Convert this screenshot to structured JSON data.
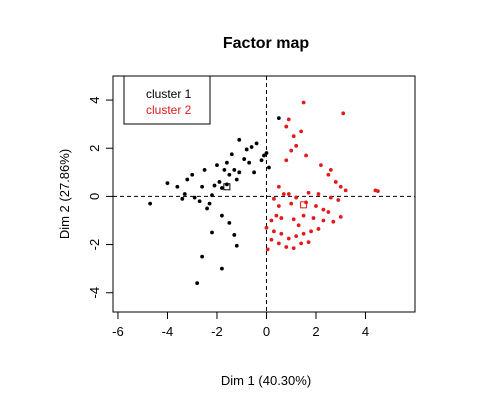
{
  "chart_data": {
    "type": "scatter",
    "title": "Factor map",
    "xlabel": "Dim 1 (40.30%)",
    "ylabel": "Dim 2 (27.86%)",
    "xlim": [
      -6.2,
      6
    ],
    "ylim": [
      -4.8,
      5
    ],
    "x_ticks": [
      -6,
      -4,
      -2,
      0,
      2,
      4
    ],
    "y_ticks": [
      -4,
      -2,
      0,
      2,
      4
    ],
    "reference_lines": {
      "x": 0,
      "y": 0,
      "style": "dashed"
    },
    "legend": {
      "position": "top-left",
      "entries": [
        "cluster 1",
        "cluster 2"
      ]
    },
    "series": [
      {
        "name": "cluster 1",
        "color": "#000000",
        "points": [
          [
            -4.7,
            -0.3
          ],
          [
            -4.0,
            0.55
          ],
          [
            -3.6,
            0.4
          ],
          [
            -3.4,
            -0.1
          ],
          [
            -3.3,
            0.1
          ],
          [
            -3.2,
            0.7
          ],
          [
            -3.0,
            0.9
          ],
          [
            -2.9,
            -0.05
          ],
          [
            -2.7,
            -0.2
          ],
          [
            -2.6,
            0.4
          ],
          [
            -2.5,
            1.1
          ],
          [
            -2.4,
            -0.5
          ],
          [
            -2.3,
            -0.3
          ],
          [
            -2.2,
            0.05
          ],
          [
            -2.1,
            0.45
          ],
          [
            -2.0,
            1.3
          ],
          [
            -1.9,
            0.6
          ],
          [
            -1.8,
            0.35
          ],
          [
            -1.7,
            1.1
          ],
          [
            -1.6,
            1.4
          ],
          [
            -1.5,
            0.9
          ],
          [
            -1.4,
            1.75
          ],
          [
            -1.3,
            1.1
          ],
          [
            -1.2,
            0.7
          ],
          [
            -1.1,
            1.0
          ],
          [
            -0.9,
            1.55
          ],
          [
            -0.8,
            1.95
          ],
          [
            -0.7,
            1.4
          ],
          [
            -0.6,
            2.05
          ],
          [
            -0.5,
            1.0
          ],
          [
            -0.4,
            2.2
          ],
          [
            -0.2,
            1.5
          ],
          [
            -0.1,
            1.7
          ],
          [
            -1.1,
            2.35
          ],
          [
            -2.2,
            -1.5
          ],
          [
            -1.8,
            -0.8
          ],
          [
            -1.5,
            -1.1
          ],
          [
            -1.3,
            -1.6
          ],
          [
            -1.2,
            -2.05
          ],
          [
            -1.8,
            -3.0
          ],
          [
            -2.6,
            -2.5
          ],
          [
            -2.8,
            -3.6
          ],
          [
            -1.6,
            0.5
          ],
          [
            0.5,
            3.25
          ],
          [
            0.1,
            1.2
          ],
          [
            0.0,
            1.8
          ]
        ]
      },
      {
        "name": "cluster 2",
        "color": "#e31a1c",
        "points": [
          [
            1.5,
            3.9
          ],
          [
            0.9,
            3.2
          ],
          [
            0.8,
            2.9
          ],
          [
            1.1,
            2.5
          ],
          [
            1.4,
            2.7
          ],
          [
            1.2,
            2.1
          ],
          [
            1.0,
            1.9
          ],
          [
            0.8,
            1.5
          ],
          [
            1.6,
            1.7
          ],
          [
            2.2,
            1.3
          ],
          [
            2.5,
            0.9
          ],
          [
            2.6,
            1.1
          ],
          [
            2.8,
            0.6
          ],
          [
            3.0,
            0.4
          ],
          [
            3.2,
            0.25
          ],
          [
            3.1,
            3.45
          ],
          [
            4.4,
            0.25
          ],
          [
            4.5,
            0.22
          ],
          [
            0.5,
            0.4
          ],
          [
            0.7,
            0.1
          ],
          [
            0.3,
            -0.1
          ],
          [
            0.9,
            0.1
          ],
          [
            1.2,
            -0.05
          ],
          [
            1.7,
            0.15
          ],
          [
            2.1,
            0.1
          ],
          [
            2.6,
            -0.05
          ],
          [
            0.5,
            -0.4
          ],
          [
            1.0,
            -0.3
          ],
          [
            1.6,
            -0.25
          ],
          [
            2.0,
            -0.4
          ],
          [
            2.5,
            -0.65
          ],
          [
            3.0,
            -0.85
          ],
          [
            0.2,
            -1.0
          ],
          [
            0.6,
            -0.9
          ],
          [
            1.1,
            -0.95
          ],
          [
            1.5,
            -0.8
          ],
          [
            1.9,
            -0.9
          ],
          [
            2.3,
            -1.0
          ],
          [
            2.7,
            -1.05
          ],
          [
            0.0,
            -1.3
          ],
          [
            0.3,
            -1.45
          ],
          [
            0.6,
            -1.55
          ],
          [
            0.9,
            -1.75
          ],
          [
            1.2,
            -1.65
          ],
          [
            1.5,
            -1.55
          ],
          [
            1.8,
            -1.45
          ],
          [
            2.1,
            -1.35
          ],
          [
            0.2,
            -1.8
          ],
          [
            0.5,
            -1.95
          ],
          [
            0.8,
            -2.1
          ],
          [
            1.1,
            -2.15
          ],
          [
            1.4,
            -1.95
          ],
          [
            1.7,
            -1.9
          ],
          [
            0.05,
            -2.2
          ],
          [
            2.3,
            -0.55
          ],
          [
            1.3,
            -1.2
          ],
          [
            0.4,
            -0.8
          ],
          [
            2.9,
            -0.15
          ]
        ]
      }
    ],
    "centroids": [
      {
        "series": "cluster 1",
        "x": -1.6,
        "y": 0.4
      },
      {
        "series": "cluster 2",
        "x": 1.5,
        "y": -0.35
      }
    ]
  }
}
